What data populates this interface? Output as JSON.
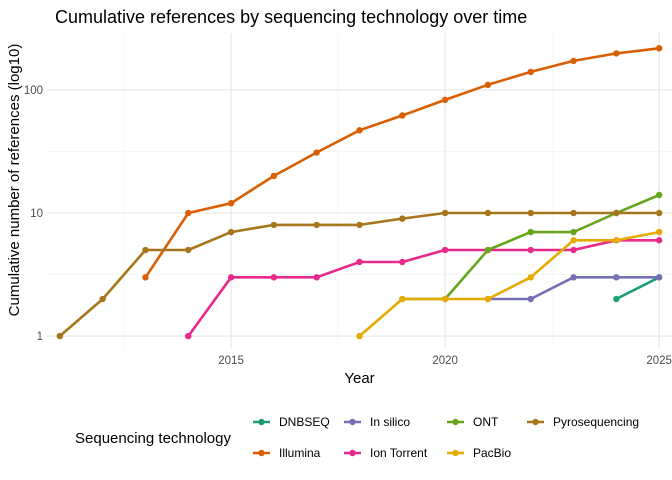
{
  "chart_data": {
    "type": "line",
    "title": "Cumulative references by sequencing technology over time",
    "xlabel": "Year",
    "ylabel": "Cumulative number of references (log10)",
    "y_scale": "log10",
    "xlim": [
      2010.7,
      2025.3
    ],
    "ylim": [
      0.8,
      290
    ],
    "x_ticks": [
      2015,
      2020,
      2025
    ],
    "y_ticks": [
      1,
      10,
      100
    ],
    "grid": true,
    "legend": {
      "title": "Sequencing technology",
      "position": "bottom"
    },
    "series": [
      {
        "name": "DNBSEQ",
        "color": "#1b9e77",
        "x": [
          2024,
          2025
        ],
        "y": [
          2,
          3
        ]
      },
      {
        "name": "Illumina",
        "color": "#d95f02",
        "x": [
          2013,
          2014,
          2015,
          2016,
          2017,
          2018,
          2019,
          2020,
          2021,
          2022,
          2023,
          2024,
          2025
        ],
        "y": [
          3,
          10,
          12,
          20,
          31,
          47,
          62,
          83,
          110,
          140,
          172,
          198,
          218
        ]
      },
      {
        "name": "In silico",
        "color": "#7570b3",
        "x": [
          2021,
          2022,
          2023,
          2024,
          2025
        ],
        "y": [
          2,
          2,
          3,
          3,
          3
        ]
      },
      {
        "name": "Ion Torrent",
        "color": "#e7298a",
        "x": [
          2014,
          2015,
          2016,
          2017,
          2018,
          2019,
          2020,
          2021,
          2022,
          2023,
          2024,
          2025
        ],
        "y": [
          1,
          3,
          3,
          3,
          4,
          4,
          5,
          5,
          5,
          5,
          6,
          6
        ]
      },
      {
        "name": "ONT",
        "color": "#66a61e",
        "x": [
          2019,
          2020,
          2021,
          2022,
          2023,
          2024,
          2025
        ],
        "y": [
          2,
          2,
          5,
          7,
          7,
          10,
          14
        ]
      },
      {
        "name": "PacBio",
        "color": "#e6ab02",
        "x": [
          2018,
          2019,
          2020,
          2021,
          2022,
          2023,
          2024,
          2025
        ],
        "y": [
          1,
          2,
          2,
          2,
          3,
          6,
          6,
          7
        ]
      },
      {
        "name": "Pyrosequencing",
        "color": "#a6761d",
        "x": [
          2011,
          2012,
          2013,
          2014,
          2015,
          2016,
          2017,
          2018,
          2019,
          2020,
          2021,
          2022,
          2023,
          2024,
          2025
        ],
        "y": [
          1,
          2,
          5,
          5,
          7,
          8,
          8,
          8,
          9,
          10,
          10,
          10,
          10,
          10,
          10
        ]
      }
    ]
  }
}
